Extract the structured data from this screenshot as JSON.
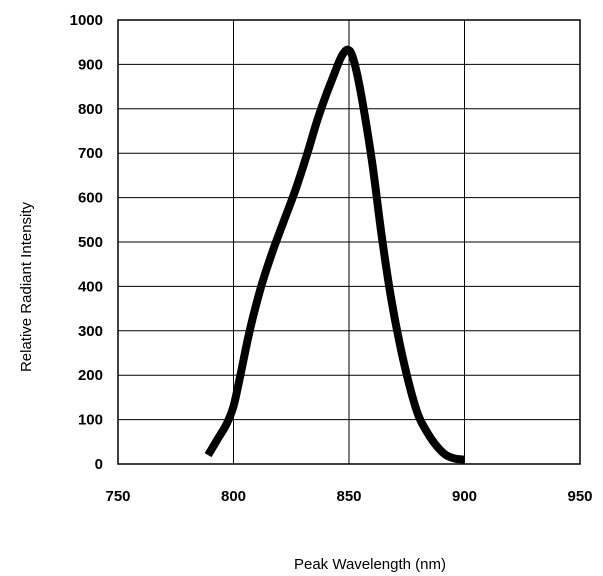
{
  "chart_data": {
    "type": "line",
    "title": "",
    "xlabel": "Peak Wavelength (nm)",
    "ylabel": "Relative Radiant Intensity",
    "xlim": [
      750,
      950
    ],
    "ylim": [
      0,
      1000
    ],
    "x_ticks": [
      750,
      800,
      850,
      900,
      950
    ],
    "y_ticks": [
      0,
      100,
      200,
      300,
      400,
      500,
      600,
      700,
      800,
      900,
      1000
    ],
    "grid": true,
    "legend": "none",
    "line_color": "#000000",
    "series": [
      {
        "x": [
          789,
          793,
          797,
          800,
          803,
          807,
          812,
          817,
          822,
          827,
          832,
          836,
          840,
          843,
          846,
          848,
          849.5,
          851,
          853,
          856,
          860,
          864,
          868,
          872,
          876,
          880,
          884,
          888,
          892,
          896,
          900
        ],
        "values": [
          20,
          55,
          90,
          130,
          200,
          300,
          400,
          480,
          550,
          620,
          700,
          770,
          830,
          870,
          910,
          928,
          933,
          925,
          890,
          810,
          680,
          520,
          380,
          270,
          180,
          110,
          70,
          40,
          20,
          12,
          10
        ]
      }
    ]
  }
}
